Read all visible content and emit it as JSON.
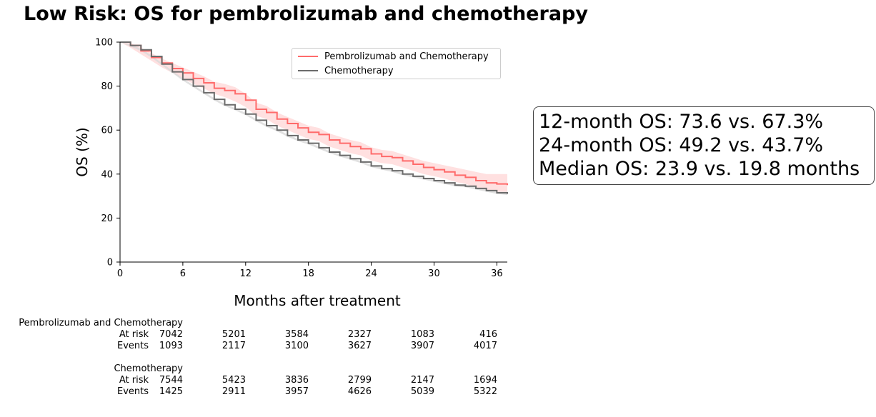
{
  "chart_data": {
    "type": "line",
    "title": "Low Risk: OS for pembrolizumab and chemotherapy",
    "xlabel": "Months after treatment",
    "ylabel": "OS (%)",
    "xlim": [
      0,
      37
    ],
    "ylim": [
      0,
      100
    ],
    "xticks": [
      0,
      6,
      12,
      18,
      24,
      30,
      36
    ],
    "yticks": [
      0,
      20,
      40,
      60,
      80,
      100
    ],
    "legend_position": "top-right",
    "grid": false,
    "series": [
      {
        "name": "Pembrolizumab and Chemotherapy",
        "color": "#ff6b6b",
        "ci_color": "#ffd6d6",
        "x": [
          0,
          1,
          2,
          3,
          4,
          5,
          6,
          7,
          8,
          9,
          10,
          11,
          12,
          13,
          14,
          15,
          16,
          17,
          18,
          19,
          20,
          21,
          22,
          23,
          24,
          25,
          26,
          27,
          28,
          29,
          30,
          31,
          32,
          33,
          34,
          35,
          36,
          37
        ],
        "y": [
          100,
          98.5,
          96,
          93,
          90.5,
          88,
          86,
          83.5,
          81.5,
          79,
          78,
          76.5,
          73.6,
          69.5,
          68,
          65,
          63,
          61,
          59,
          58,
          55.5,
          54,
          52.5,
          51.5,
          49.2,
          48,
          47.5,
          46,
          44.5,
          43,
          42,
          41,
          39.5,
          38.5,
          37,
          36,
          35.5,
          35
        ],
        "ci_lower": [
          100,
          97.5,
          94.5,
          91.5,
          88.5,
          86,
          83.5,
          81,
          79,
          76.5,
          75,
          73,
          70.5,
          66.5,
          65,
          62,
          60,
          58,
          56,
          55,
          52.5,
          51,
          49.5,
          48.5,
          46.2,
          45,
          44.5,
          43,
          41.5,
          40,
          39,
          38,
          36.5,
          35.5,
          34,
          33,
          32,
          31
        ],
        "ci_upper": [
          100,
          99.5,
          97.5,
          95,
          92.5,
          90.5,
          88.5,
          86.5,
          84.5,
          82,
          81,
          79.5,
          76.5,
          72.5,
          71,
          68,
          66,
          64,
          62,
          61,
          58.5,
          57,
          55.5,
          54.5,
          52.2,
          51,
          50.5,
          49,
          47.5,
          46,
          45,
          44,
          43,
          42,
          41,
          40,
          40,
          40
        ]
      },
      {
        "name": "Chemotherapy",
        "color": "#6b6b6b",
        "ci_color": "#d9d9d9",
        "x": [
          0,
          1,
          2,
          3,
          4,
          5,
          6,
          7,
          8,
          9,
          10,
          11,
          12,
          13,
          14,
          15,
          16,
          17,
          18,
          19,
          20,
          21,
          22,
          23,
          24,
          25,
          26,
          27,
          28,
          29,
          30,
          31,
          32,
          33,
          34,
          35,
          36,
          37
        ],
        "y": [
          100,
          98.5,
          96.5,
          93.5,
          90,
          86.5,
          83,
          80,
          77,
          74,
          71.5,
          69.5,
          67.3,
          64.5,
          62,
          60,
          57.5,
          55.5,
          54,
          52,
          50,
          48.5,
          47,
          45.5,
          43.7,
          42.5,
          41.5,
          40,
          39,
          38,
          37,
          36,
          35,
          34.5,
          33.5,
          32.5,
          31.5,
          31
        ],
        "ci_lower": [
          100,
          98,
          96,
          93,
          89.5,
          86,
          82.5,
          79.5,
          76.5,
          73.5,
          71,
          69,
          66.8,
          64,
          61.5,
          59.5,
          57,
          55,
          53.5,
          51.5,
          49.5,
          48,
          46.5,
          45,
          43.2,
          42,
          41,
          39.5,
          38.5,
          37.5,
          36.5,
          35.5,
          34.5,
          34,
          33,
          32,
          31,
          30.5
        ],
        "ci_upper": [
          100,
          99,
          97,
          94,
          90.5,
          87,
          83.5,
          80.5,
          77.5,
          74.5,
          72,
          70,
          67.8,
          65,
          62.5,
          60.5,
          58,
          56,
          54.5,
          52.5,
          50.5,
          49,
          47.5,
          46,
          44.2,
          43,
          42,
          40.5,
          39.5,
          38.5,
          37.5,
          36.5,
          35.5,
          35,
          34,
          33,
          32,
          31.5
        ]
      }
    ],
    "annotation": [
      "12-month OS: 73.6 vs. 67.3%",
      "24-month OS: 49.2 vs. 43.7%",
      "Median OS: 23.9 vs. 19.8 months"
    ]
  },
  "risk_table": {
    "row_labels": [
      "At risk",
      "Events"
    ],
    "groups": [
      {
        "name": "Pembrolizumab and Chemotherapy",
        "at_risk": [
          "7042",
          "5201",
          "3584",
          "2327",
          "1083",
          "416"
        ],
        "events": [
          "1093",
          "2117",
          "3100",
          "3627",
          "3907",
          "4017"
        ]
      },
      {
        "name": "Chemotherapy",
        "at_risk": [
          "7544",
          "5423",
          "3836",
          "2799",
          "2147",
          "1694"
        ],
        "events": [
          "1425",
          "2911",
          "3957",
          "4626",
          "5039",
          "5322"
        ]
      }
    ]
  }
}
